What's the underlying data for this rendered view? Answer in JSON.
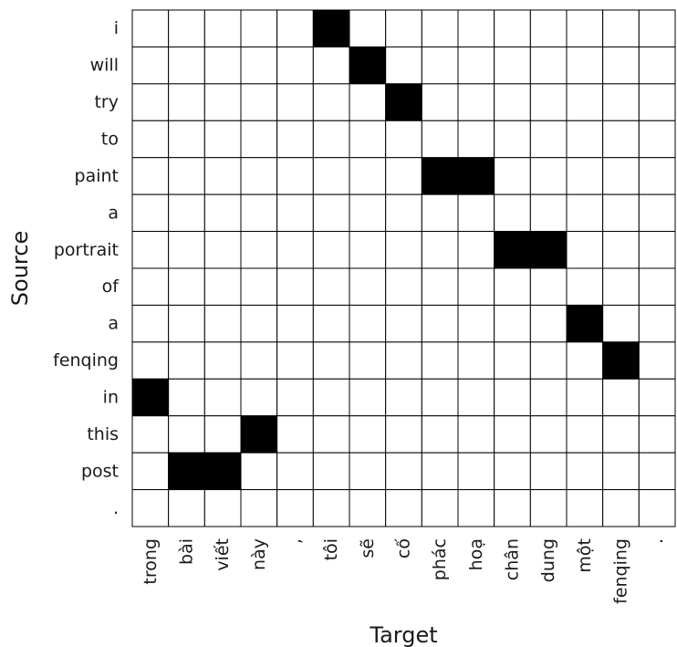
{
  "chart_data": {
    "type": "heatmap",
    "title": "",
    "xlabel": "Target",
    "ylabel": "Source",
    "x_categories": [
      "trong",
      "bài",
      "viết",
      "này",
      ",",
      "tôi",
      "sẽ",
      "cố",
      "phác",
      "hoạ",
      "chân",
      "dung",
      "một",
      "fenqing",
      "."
    ],
    "y_categories": [
      "i",
      "will",
      "try",
      "to",
      "paint",
      "a",
      "portrait",
      "of",
      "a",
      "fenqing",
      "in",
      "this",
      "post",
      "."
    ],
    "values": [
      [
        0,
        0,
        0,
        0,
        0,
        1,
        0,
        0,
        0,
        0,
        0,
        0,
        0,
        0,
        0
      ],
      [
        0,
        0,
        0,
        0,
        0,
        0,
        1,
        0,
        0,
        0,
        0,
        0,
        0,
        0,
        0
      ],
      [
        0,
        0,
        0,
        0,
        0,
        0,
        0,
        1,
        0,
        0,
        0,
        0,
        0,
        0,
        0
      ],
      [
        0,
        0,
        0,
        0,
        0,
        0,
        0,
        0,
        0,
        0,
        0,
        0,
        0,
        0,
        0
      ],
      [
        0,
        0,
        0,
        0,
        0,
        0,
        0,
        0,
        1,
        1,
        0,
        0,
        0,
        0,
        0
      ],
      [
        0,
        0,
        0,
        0,
        0,
        0,
        0,
        0,
        0,
        0,
        0,
        0,
        0,
        0,
        0
      ],
      [
        0,
        0,
        0,
        0,
        0,
        0,
        0,
        0,
        0,
        0,
        1,
        1,
        0,
        0,
        0
      ],
      [
        0,
        0,
        0,
        0,
        0,
        0,
        0,
        0,
        0,
        0,
        0,
        0,
        0,
        0,
        0
      ],
      [
        0,
        0,
        0,
        0,
        0,
        0,
        0,
        0,
        0,
        0,
        0,
        0,
        1,
        0,
        0
      ],
      [
        0,
        0,
        0,
        0,
        0,
        0,
        0,
        0,
        0,
        0,
        0,
        0,
        0,
        1,
        0
      ],
      [
        1,
        0,
        0,
        0,
        0,
        0,
        0,
        0,
        0,
        0,
        0,
        0,
        0,
        0,
        0
      ],
      [
        0,
        0,
        0,
        1,
        0,
        0,
        0,
        0,
        0,
        0,
        0,
        0,
        0,
        0,
        0
      ],
      [
        0,
        1,
        1,
        0,
        0,
        0,
        0,
        0,
        0,
        0,
        0,
        0,
        0,
        0,
        0
      ],
      [
        0,
        0,
        0,
        0,
        0,
        0,
        0,
        0,
        0,
        0,
        0,
        0,
        0,
        0,
        0
      ]
    ],
    "colors": {
      "aligned": "#000000",
      "empty": "#ffffff",
      "grid": "#000000"
    },
    "grid": true,
    "legend": "none"
  }
}
